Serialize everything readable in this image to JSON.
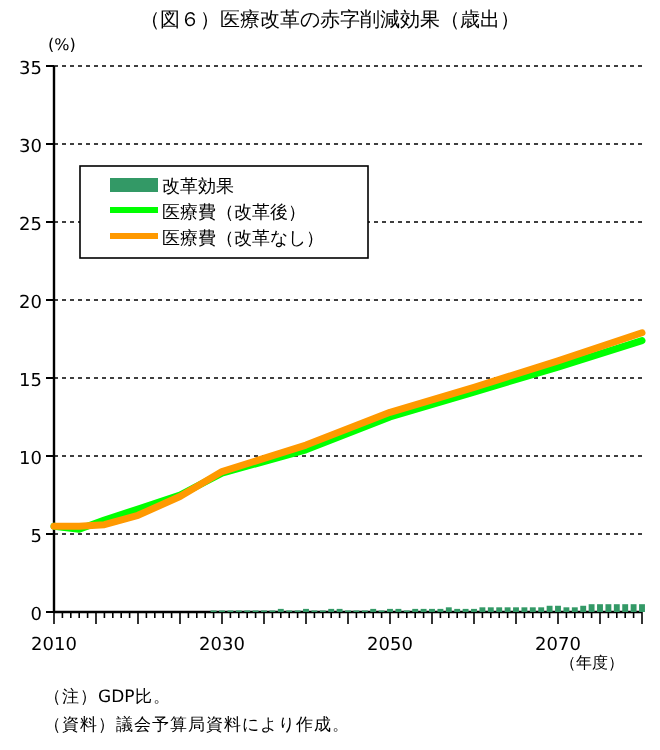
{
  "chart_data": {
    "type": "line",
    "title": "（図６）医療改革の赤字削減効果（歳出）",
    "ylabel": "(%)",
    "xlabel": "（年度）",
    "annotations": [
      "（注）GDP比。",
      "（資料）議会予算局資料により作成。"
    ],
    "xlim": [
      2010,
      2080
    ],
    "ylim": [
      0,
      35
    ],
    "yticks": [
      0,
      5,
      10,
      15,
      20,
      25,
      30,
      35
    ],
    "xticks": [
      2010,
      {
        "value": 2011,
        "label": null
      },
      {
        "value": 2012,
        "label": null
      },
      {
        "value": 2013,
        "label": null
      },
      {
        "value": 2014,
        "label": null
      },
      {
        "value": 2015,
        "label": null
      },
      {
        "value": 2016,
        "label": null
      },
      {
        "value": 2017,
        "label": null
      },
      {
        "value": 2018,
        "label": null
      },
      {
        "value": 2019,
        "label": null
      },
      {
        "value": 2020,
        "label": null
      },
      {
        "value": 2021,
        "label": null
      },
      {
        "value": 2022,
        "label": null
      },
      {
        "value": 2023,
        "label": null
      },
      {
        "value": 2024,
        "label": null
      },
      {
        "value": 2025,
        "label": null
      },
      {
        "value": 2026,
        "label": null
      },
      {
        "value": 2027,
        "label": null
      },
      {
        "value": 2028,
        "label": null
      },
      {
        "value": 2029,
        "label": null
      },
      2030,
      {
        "value": 2031,
        "label": null
      },
      {
        "value": 2032,
        "label": null
      },
      {
        "value": 2033,
        "label": null
      },
      {
        "value": 2034,
        "label": null
      },
      {
        "value": 2035,
        "label": null
      },
      {
        "value": 2036,
        "label": null
      },
      {
        "value": 2037,
        "label": null
      },
      {
        "value": 2038,
        "label": null
      },
      {
        "value": 2039,
        "label": null
      },
      {
        "value": 2040,
        "label": null
      },
      {
        "value": 2041,
        "label": null
      },
      {
        "value": 2042,
        "label": null
      },
      {
        "value": 2043,
        "label": null
      },
      {
        "value": 2044,
        "label": null
      },
      {
        "value": 2045,
        "label": null
      },
      {
        "value": 2046,
        "label": null
      },
      {
        "value": 2047,
        "label": null
      },
      {
        "value": 2048,
        "label": null
      },
      {
        "value": 2049,
        "label": null
      },
      2050,
      {
        "value": 2051,
        "label": null
      },
      {
        "value": 2052,
        "label": null
      },
      {
        "value": 2053,
        "label": null
      },
      {
        "value": 2054,
        "label": null
      },
      {
        "value": 2055,
        "label": null
      },
      {
        "value": 2056,
        "label": null
      },
      {
        "value": 2057,
        "label": null
      },
      {
        "value": 2058,
        "label": null
      },
      {
        "value": 2059,
        "label": null
      },
      {
        "value": 2060,
        "label": null
      },
      {
        "value": 2061,
        "label": null
      },
      {
        "value": 2062,
        "label": null
      },
      {
        "value": 2063,
        "label": null
      },
      {
        "value": 2064,
        "label": null
      },
      {
        "value": 2065,
        "label": null
      },
      {
        "value": 2066,
        "label": null
      },
      {
        "value": 2067,
        "label": null
      },
      {
        "value": 2068,
        "label": null
      },
      {
        "value": 2069,
        "label": null
      },
      2070,
      {
        "value": 2071,
        "label": null
      },
      {
        "value": 2072,
        "label": null
      },
      {
        "value": 2073,
        "label": null
      },
      {
        "value": 2074,
        "label": null
      },
      {
        "value": 2075,
        "label": null
      },
      {
        "value": 2076,
        "label": null
      },
      {
        "value": 2077,
        "label": null
      },
      {
        "value": 2078,
        "label": null
      },
      {
        "value": 2079,
        "label": null
      },
      {
        "value": 2080,
        "label": null
      }
    ],
    "grid": "y",
    "legend": "top left",
    "series": [
      {
        "name": "改革効果",
        "type": "bar",
        "color": "#339966",
        "x": [
          2029,
          2030,
          2031,
          2032,
          2033,
          2034,
          2035,
          2036,
          2037,
          2038,
          2039,
          2040,
          2041,
          2042,
          2043,
          2044,
          2045,
          2046,
          2047,
          2048,
          2049,
          2050,
          2051,
          2052,
          2053,
          2054,
          2055,
          2056,
          2057,
          2058,
          2059,
          2060,
          2061,
          2062,
          2063,
          2064,
          2065,
          2066,
          2067,
          2068,
          2069,
          2070,
          2071,
          2072,
          2073,
          2074,
          2075,
          2076,
          2077,
          2078,
          2079,
          2080
        ],
        "values": [
          0.1,
          0.1,
          0.1,
          0.1,
          0.1,
          0.1,
          0.1,
          0.1,
          0.2,
          0.1,
          0.1,
          0.2,
          0.1,
          0.1,
          0.2,
          0.2,
          0.1,
          0.1,
          0.1,
          0.2,
          0.1,
          0.2,
          0.2,
          0.1,
          0.2,
          0.2,
          0.2,
          0.2,
          0.3,
          0.2,
          0.2,
          0.2,
          0.3,
          0.3,
          0.3,
          0.3,
          0.3,
          0.3,
          0.3,
          0.3,
          0.4,
          0.4,
          0.3,
          0.3,
          0.4,
          0.5,
          0.5,
          0.5,
          0.5,
          0.5,
          0.5,
          0.5
        ]
      },
      {
        "name": "医療費（改革後）",
        "color": "#00ff00",
        "x": [
          2010,
          2013,
          2016,
          2020,
          2025,
          2030,
          2040,
          2050,
          2060,
          2070,
          2080
        ],
        "values": [
          5.5,
          5.3,
          5.9,
          6.6,
          7.5,
          8.9,
          10.4,
          12.5,
          14.1,
          15.7,
          17.4
        ]
      },
      {
        "name": "医療費（改革なし）",
        "color": "#ff9900",
        "x": [
          2010,
          2013,
          2016,
          2020,
          2025,
          2030,
          2040,
          2050,
          2060,
          2070,
          2080
        ],
        "values": [
          5.5,
          5.5,
          5.6,
          6.2,
          7.4,
          9.0,
          10.7,
          12.8,
          14.4,
          16.1,
          17.9
        ]
      }
    ]
  }
}
